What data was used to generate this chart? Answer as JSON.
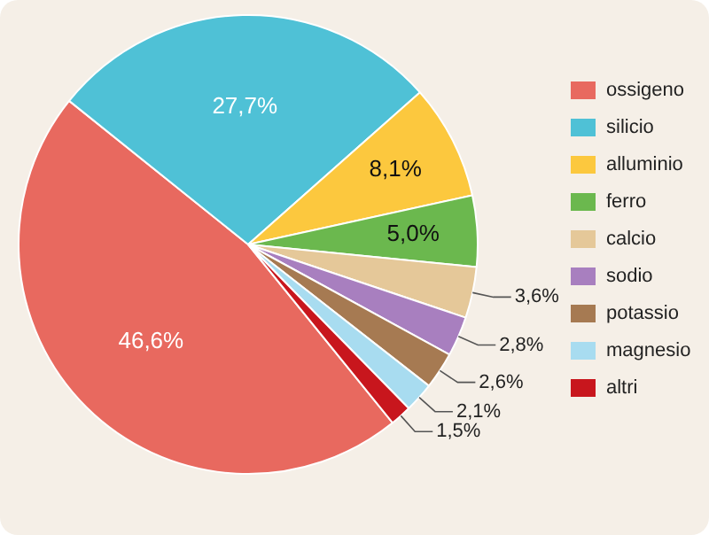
{
  "chart_data": {
    "type": "pie",
    "categories": [
      "ossigeno",
      "silicio",
      "alluminio",
      "ferro",
      "calcio",
      "sodio",
      "potassio",
      "magnesio",
      "altri"
    ],
    "values": [
      46.6,
      27.7,
      8.1,
      5.0,
      3.6,
      2.8,
      2.6,
      2.1,
      1.5
    ],
    "value_labels": [
      "46,6%",
      "27,7%",
      "8,1%",
      "5,0%",
      "3,6%",
      "2,8%",
      "2,6%",
      "2,1%",
      "1,5%"
    ],
    "colors": [
      "#e8695f",
      "#4fc1d6",
      "#fcc83e",
      "#6bb84e",
      "#e5c899",
      "#a87fbf",
      "#a67a52",
      "#a8dcf0",
      "#c8161d"
    ],
    "legend": "right"
  }
}
